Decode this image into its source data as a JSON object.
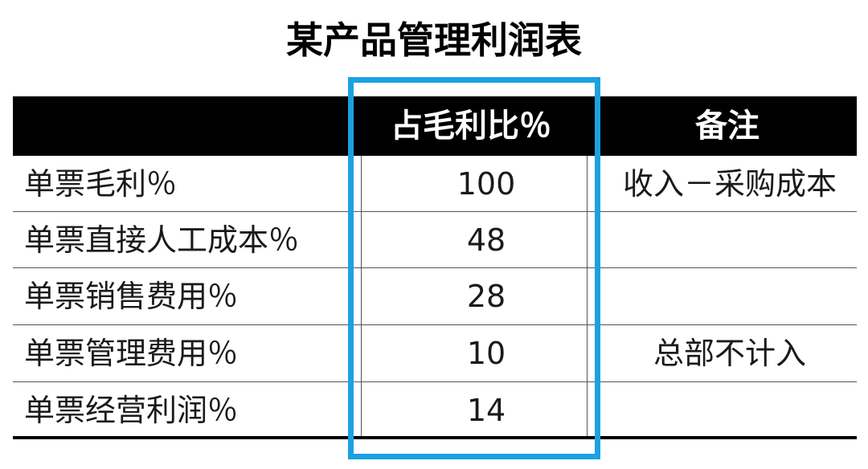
{
  "title": "某产品管理利润表",
  "headers": {
    "label": "",
    "value": "占毛利比％",
    "note": "备注"
  },
  "rows": [
    {
      "label": "单票毛利％",
      "value": "100",
      "note": "收入－采购成本"
    },
    {
      "label": "单票直接人工成本％",
      "value": "48",
      "note": ""
    },
    {
      "label": "单票销售费用％",
      "value": "28",
      "note": ""
    },
    {
      "label": "单票管理费用％",
      "value": "10",
      "note": "总部不计入"
    },
    {
      "label": "单票经营利润％",
      "value": "14",
      "note": ""
    }
  ],
  "colors": {
    "header_bg": "#000000",
    "header_text": "#ffffff",
    "highlight_border": "#1ba1e2"
  }
}
